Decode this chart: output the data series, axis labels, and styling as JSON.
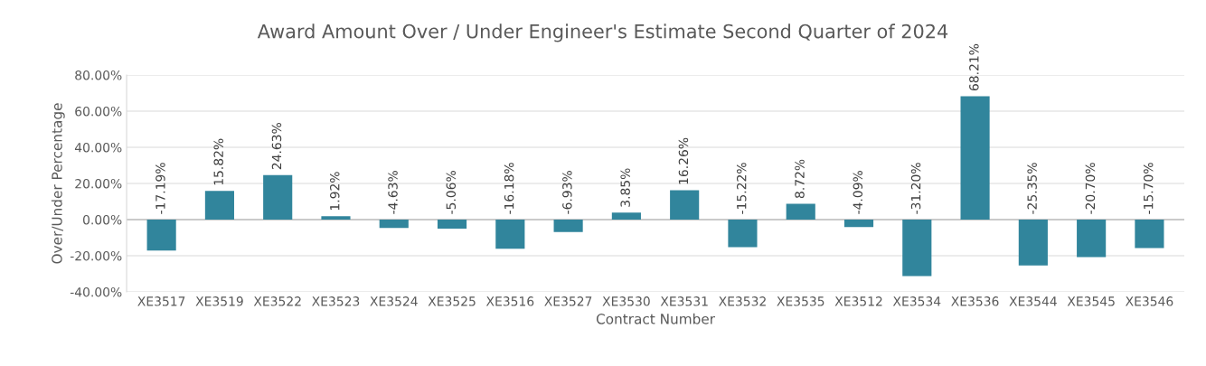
{
  "chart_data": {
    "type": "bar",
    "title": "Award Amount Over / Under Engineer's Estimate Second Quarter of 2024",
    "xlabel": "Contract Number",
    "ylabel": "Over/Under Percentage",
    "categories": [
      "XE3517",
      "XE3519",
      "XE3522",
      "XE3523",
      "XE3524",
      "XE3525",
      "XE3516",
      "XE3527",
      "XE3530",
      "XE3531",
      "XE3532",
      "XE3535",
      "XE3512",
      "XE3534",
      "XE3536",
      "XE3544",
      "XE3545",
      "XE3546"
    ],
    "values": [
      -17.19,
      15.82,
      24.63,
      1.92,
      -4.63,
      -5.06,
      -16.18,
      -6.93,
      3.85,
      16.26,
      -15.22,
      8.72,
      -4.09,
      -31.2,
      68.21,
      -25.35,
      -20.7,
      -15.7
    ],
    "value_labels": [
      "-17.19%",
      "15.82%",
      "24.63%",
      "1.92%",
      "-4.63%",
      "-5.06%",
      "-16.18%",
      "-6.93%",
      "3.85%",
      "16.26%",
      "-15.22%",
      "8.72%",
      "-4.09%",
      "-31.20%",
      "68.21%",
      "-25.35%",
      "-20.70%",
      "-15.70%"
    ],
    "color": "#31859c",
    "ylim": [
      -40,
      80
    ],
    "yticks": [
      {
        "value": -40,
        "label": "-40.00%"
      },
      {
        "value": -20,
        "label": "-20.00%"
      },
      {
        "value": 0,
        "label": "0.00%"
      },
      {
        "value": 20,
        "label": "20.00%"
      },
      {
        "value": 40,
        "label": "40.00%"
      },
      {
        "value": 60,
        "label": "60.00%"
      },
      {
        "value": 80,
        "label": "80.00%"
      }
    ],
    "grid": "y",
    "legend": false
  }
}
